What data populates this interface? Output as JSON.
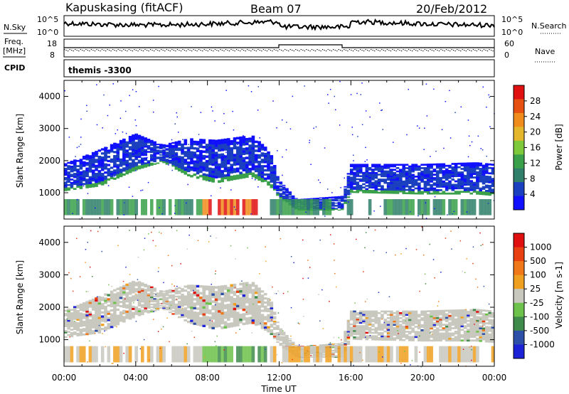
{
  "header": {
    "station": "Kapuskasing (fitACF)",
    "beam": "Beam 07",
    "date": "20/Feb/2012"
  },
  "noise_panel": {
    "left_label": "N.Sky",
    "right_label": "N.Search",
    "tick_top": "10^5",
    "tick_bottom": "10^0",
    "right_tick_top": "10^5",
    "right_tick_bottom": "10^0"
  },
  "freq_panel": {
    "left_label_line1": "Freq.",
    "left_label_line2": "[MHz]",
    "left_ticks": [
      "18",
      "8"
    ],
    "right_label": "Nave",
    "right_ticks": [
      "60",
      "0"
    ]
  },
  "cpid_panel": {
    "left_label": "CPID",
    "program": "themis -3300"
  },
  "colors": {
    "power": [
      "#1010ff",
      "#1a3fbf",
      "#2f7f6a",
      "#3aa14a",
      "#7ec83c",
      "#e3b62c",
      "#f08c1c",
      "#e65010",
      "#e01010"
    ],
    "velocity": [
      "#1c23d6",
      "#2d4fa8",
      "#3f8b4c",
      "#6cc24a",
      "#c8c8bf",
      "#f0a020",
      "#f07818",
      "#e84010",
      "#e01010"
    ],
    "ground_scatter": "#c8c8bf"
  },
  "power_colorbar": {
    "label": "Power [dB]",
    "ticks": [
      "28",
      "24",
      "20",
      "16",
      "12",
      "8",
      "4"
    ]
  },
  "velocity_colorbar": {
    "label": "Velocity [m s-1]",
    "ticks": [
      "1000",
      "500",
      "100",
      "25",
      "-25",
      "-100",
      "-500",
      "-1000"
    ]
  },
  "x_axis": {
    "label": "Time UT",
    "ticks": [
      "00:00",
      "04:00",
      "08:00",
      "12:00",
      "16:00",
      "20:00",
      "00:00"
    ]
  },
  "chart_data": {
    "type": "heatmap",
    "panels": [
      "Power",
      "Velocity"
    ],
    "xlabel": "Time UT",
    "ylabel": "Slant Range [km]",
    "xlim_hours": [
      0,
      24
    ],
    "ylim_km": [
      180,
      4500
    ],
    "yticks": [
      "1000",
      "2000",
      "3000",
      "4000"
    ],
    "power_clim_db": [
      0,
      30
    ],
    "velocity_clim": [
      -1000,
      1000
    ],
    "scatter_band": {
      "time_hours": [
        0,
        2,
        4,
        5.5,
        7,
        8.5,
        10.5,
        11.5,
        12,
        13,
        15.5,
        16,
        20,
        23,
        24
      ],
      "upper_edge_km": [
        1900,
        2350,
        2850,
        2500,
        2700,
        2650,
        2800,
        2300,
        1400,
        800,
        900,
        1900,
        1900,
        1950,
        1900
      ],
      "lower_edge_km": [
        1050,
        1200,
        1700,
        1950,
        1500,
        1300,
        1500,
        1200,
        850,
        450,
        450,
        1000,
        950,
        950,
        900
      ]
    },
    "near_range_band_km": [
      300,
      800
    ],
    "high_power_interval_hours": [
      7.8,
      11.5
    ]
  }
}
